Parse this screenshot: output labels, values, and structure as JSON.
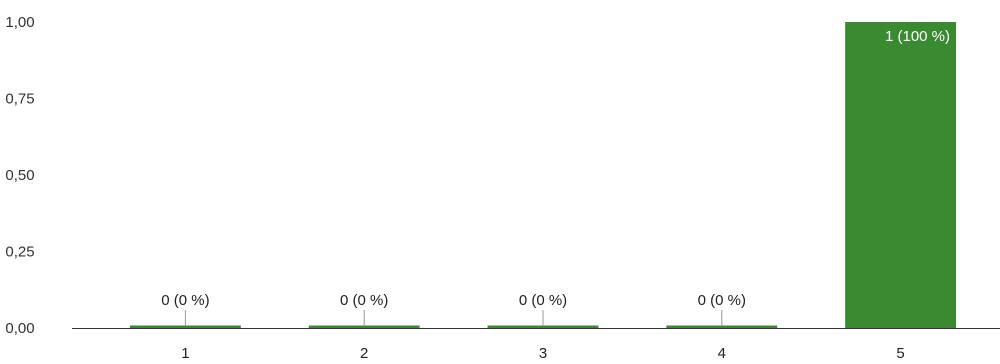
{
  "chart_data": {
    "type": "bar",
    "categories": [
      "1",
      "2",
      "3",
      "4",
      "5"
    ],
    "values": [
      0,
      0,
      0,
      0,
      1
    ],
    "data_labels": [
      "0 (0 %)",
      "0 (0 %)",
      "0 (0 %)",
      "0 (0 %)",
      "1 (100 %)"
    ],
    "y_ticks": [
      "0,00",
      "0,25",
      "0,50",
      "0,75",
      "1,00"
    ],
    "ylim": [
      0,
      1
    ],
    "grid": false,
    "colors": {
      "bar": "#3a8a32",
      "axis": "#333333",
      "leader": "#999999"
    }
  }
}
